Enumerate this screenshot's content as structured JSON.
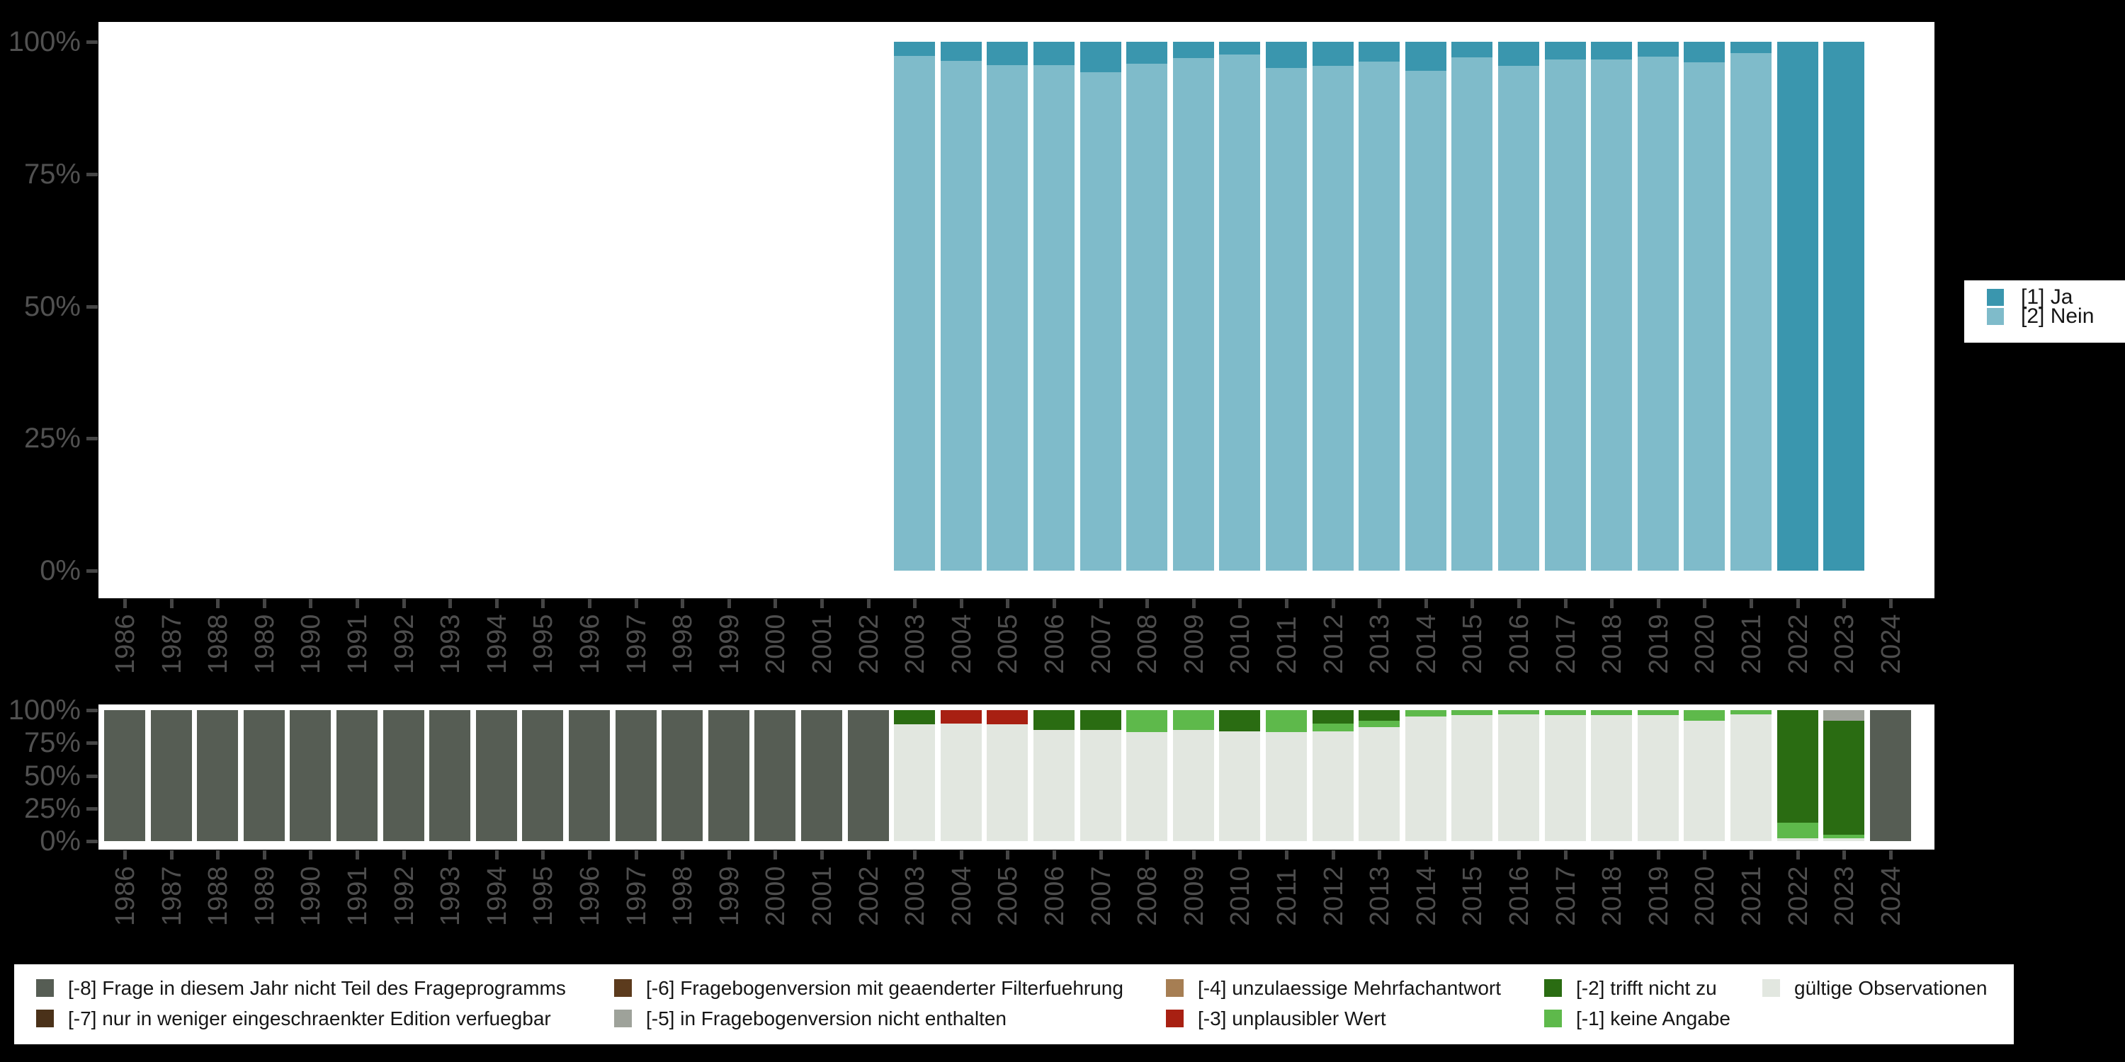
{
  "background_color": "#000000",
  "axis": {
    "tick_color": "#454545",
    "x_label_color": "#4e4e4e",
    "y_label_color": "#515151",
    "y_tick_labels": [
      "100%",
      "75%",
      "50%",
      "25%",
      "0%"
    ]
  },
  "years": [
    "1986",
    "1987",
    "1988",
    "1989",
    "1990",
    "1991",
    "1992",
    "1993",
    "1994",
    "1995",
    "1996",
    "1997",
    "1998",
    "1999",
    "2000",
    "2001",
    "2002",
    "2003",
    "2004",
    "2005",
    "2006",
    "2007",
    "2008",
    "2009",
    "2010",
    "2011",
    "2012",
    "2013",
    "2014",
    "2015",
    "2016",
    "2017",
    "2018",
    "2019",
    "2020",
    "2021",
    "2022",
    "2023",
    "2024"
  ],
  "top_legend": {
    "items": [
      {
        "label": "[1] Ja",
        "color": "#3A96AE"
      },
      {
        "label": "[2] Nein",
        "color": "#7FBBCA"
      }
    ]
  },
  "bottom_legend": {
    "items": [
      {
        "label": "[-8] Frage in diesem Jahr nicht Teil des Frageprogramms",
        "color": "#565D54",
        "col": 0,
        "row": 0
      },
      {
        "label": "[-7] nur in weniger eingeschraenkter Edition verfuegbar",
        "color": "#4A3119",
        "col": 0,
        "row": 1
      },
      {
        "label": "[-6] Fragebogenversion mit geaenderter Filterfuehrung",
        "color": "#5C3B1D",
        "col": 1,
        "row": 0
      },
      {
        "label": "[-5] in Fragebogenversion nicht enthalten",
        "color": "#9EA29A",
        "col": 1,
        "row": 1
      },
      {
        "label": "[-4] unzulaessige Mehrfachantwort",
        "color": "#A67E53",
        "col": 2,
        "row": 0
      },
      {
        "label": "[-3] unplausibler Wert",
        "color": "#A82012",
        "col": 2,
        "row": 1
      },
      {
        "label": "[-2] trifft nicht zu",
        "color": "#2A6C12",
        "col": 3,
        "row": 0
      },
      {
        "label": "[-1] keine Angabe",
        "color": "#5EB94B",
        "col": 3,
        "row": 1
      },
      {
        "label": "gültige Observationen",
        "color": "#E2E7E0",
        "col": 4,
        "row": 0
      }
    ]
  },
  "chart_data": [
    {
      "type": "bar",
      "stacked": true,
      "title": "",
      "xlabel": "",
      "ylabel": "",
      "ylim": [
        0,
        100
      ],
      "ytick_labels": [
        "0%",
        "25%",
        "50%",
        "75%",
        "100%"
      ],
      "grid": false,
      "legend_position": "right",
      "categories": [
        "1986",
        "1987",
        "1988",
        "1989",
        "1990",
        "1991",
        "1992",
        "1993",
        "1994",
        "1995",
        "1996",
        "1997",
        "1998",
        "1999",
        "2000",
        "2001",
        "2002",
        "2003",
        "2004",
        "2005",
        "2006",
        "2007",
        "2008",
        "2009",
        "2010",
        "2011",
        "2012",
        "2013",
        "2014",
        "2015",
        "2016",
        "2017",
        "2018",
        "2019",
        "2020",
        "2021",
        "2022",
        "2023",
        "2024"
      ],
      "series": [
        {
          "name": "[1] Ja",
          "color": "#3A96AE",
          "values": [
            0,
            0,
            0,
            0,
            0,
            0,
            0,
            0,
            0,
            0,
            0,
            0,
            0,
            0,
            0,
            0,
            0,
            2.7,
            3.6,
            4.4,
            4.4,
            5.8,
            4.1,
            3.1,
            2.4,
            5,
            4.6,
            3.8,
            5.5,
            3,
            4.6,
            3.3,
            3.4,
            2.8,
            3.9,
            2.2,
            100,
            100,
            0
          ]
        },
        {
          "name": "[2] Nein",
          "color": "#7FBBCA",
          "values": [
            0,
            0,
            0,
            0,
            0,
            0,
            0,
            0,
            0,
            0,
            0,
            0,
            0,
            0,
            0,
            0,
            0,
            97.3,
            96.4,
            95.6,
            95.6,
            94.2,
            95.9,
            96.9,
            97.6,
            95,
            95.4,
            96.2,
            94.5,
            97,
            95.4,
            96.7,
            96.6,
            97.2,
            96.1,
            97.8,
            0,
            0,
            0
          ]
        }
      ]
    },
    {
      "type": "bar",
      "stacked": true,
      "title": "",
      "xlabel": "",
      "ylabel": "",
      "ylim": [
        0,
        100
      ],
      "ytick_labels": [
        "0%",
        "25%",
        "50%",
        "75%",
        "100%"
      ],
      "grid": false,
      "legend_position": "bottom",
      "categories": [
        "1986",
        "1987",
        "1988",
        "1989",
        "1990",
        "1991",
        "1992",
        "1993",
        "1994",
        "1995",
        "1996",
        "1997",
        "1998",
        "1999",
        "2000",
        "2001",
        "2002",
        "2003",
        "2004",
        "2005",
        "2006",
        "2007",
        "2008",
        "2009",
        "2010",
        "2011",
        "2012",
        "2013",
        "2014",
        "2015",
        "2016",
        "2017",
        "2018",
        "2019",
        "2020",
        "2021",
        "2022",
        "2023",
        "2024"
      ],
      "series": [
        {
          "name": "[-8] Frage in diesem Jahr nicht Teil des Frageprogramms",
          "color": "#565D54",
          "values": [
            100,
            100,
            100,
            100,
            100,
            100,
            100,
            100,
            100,
            100,
            100,
            100,
            100,
            100,
            100,
            100,
            100,
            0,
            0,
            0,
            0,
            0,
            0,
            0,
            0,
            0,
            0,
            0,
            0,
            0,
            0,
            0,
            0,
            0,
            0,
            0,
            0,
            0,
            100
          ]
        },
        {
          "name": "[-5] in Fragebogenversion nicht enthalten",
          "color": "#9EA29A",
          "values": [
            0,
            0,
            0,
            0,
            0,
            0,
            0,
            0,
            0,
            0,
            0,
            0,
            0,
            0,
            0,
            0,
            0,
            0,
            0,
            0,
            0,
            0,
            0,
            0,
            0,
            0,
            0,
            0,
            0,
            0,
            0,
            0,
            0,
            0,
            0,
            0,
            0,
            8,
            0
          ]
        },
        {
          "name": "[-3] unplausibler Wert",
          "color": "#A82012",
          "values": [
            0,
            0,
            0,
            0,
            0,
            0,
            0,
            0,
            0,
            0,
            0,
            0,
            0,
            0,
            0,
            0,
            0,
            0,
            10,
            11,
            0,
            0,
            0,
            0,
            0,
            0,
            0,
            0,
            0,
            0,
            0,
            0,
            0,
            0,
            0,
            0,
            0,
            0,
            0
          ]
        },
        {
          "name": "[-2] trifft nicht zu",
          "color": "#2A6C12",
          "values": [
            0,
            0,
            0,
            0,
            0,
            0,
            0,
            0,
            0,
            0,
            0,
            0,
            0,
            0,
            0,
            0,
            0,
            11,
            0,
            0,
            15,
            15,
            0,
            0,
            16,
            0,
            10,
            8,
            0,
            0,
            0,
            0,
            0,
            0,
            0,
            0,
            86,
            87,
            0
          ]
        },
        {
          "name": "[-1] keine Angabe",
          "color": "#5EB94B",
          "values": [
            0,
            0,
            0,
            0,
            0,
            0,
            0,
            0,
            0,
            0,
            0,
            0,
            0,
            0,
            0,
            0,
            0,
            0,
            0,
            0,
            0,
            0,
            17,
            15,
            0,
            17,
            6,
            5,
            5,
            4,
            3,
            4,
            4,
            4,
            8,
            3,
            12,
            3,
            0
          ]
        },
        {
          "name": "gültige Observationen",
          "color": "#E2E7E0",
          "values": [
            0,
            0,
            0,
            0,
            0,
            0,
            0,
            0,
            0,
            0,
            0,
            0,
            0,
            0,
            0,
            0,
            0,
            89,
            90,
            89,
            85,
            85,
            83,
            85,
            84,
            83,
            84,
            87,
            95,
            96,
            97,
            96,
            96,
            96,
            92,
            97,
            2,
            2,
            0
          ]
        }
      ]
    }
  ]
}
